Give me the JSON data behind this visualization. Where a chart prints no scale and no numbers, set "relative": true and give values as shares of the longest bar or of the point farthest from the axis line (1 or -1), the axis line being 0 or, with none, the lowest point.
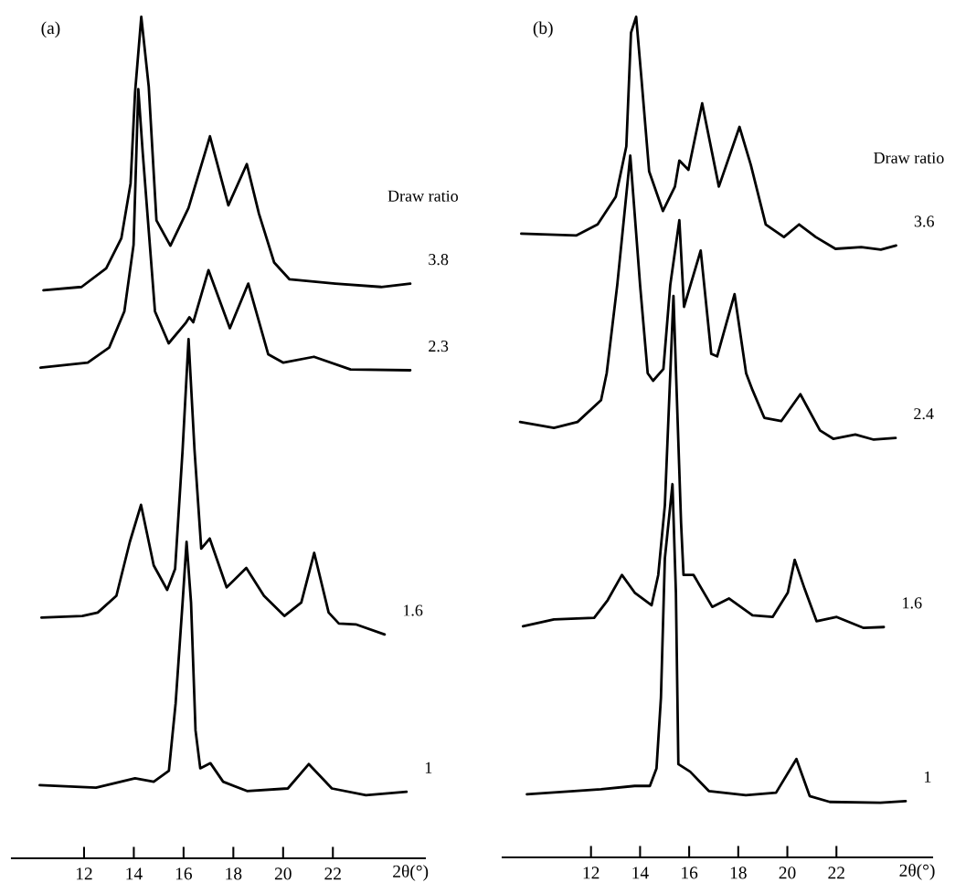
{
  "chart_data": [
    {
      "type": "line",
      "title": "(a)",
      "legend_title": "Draw ratio",
      "xlabel": "2θ(°)",
      "relative": true,
      "xlim": [
        9.1,
        25.7
      ],
      "xticks": [
        12,
        14,
        16,
        18,
        20,
        22
      ],
      "series": [
        {
          "name": "3.8",
          "color": "#000000",
          "x": [
            10.37,
            11.9,
            12.89,
            13.5,
            13.87,
            14.05,
            14.3,
            14.6,
            14.91,
            15.47,
            16.2,
            17.06,
            17.8,
            18.54,
            19.03,
            19.64,
            20.26,
            22.1,
            23.94,
            25.11
          ],
          "values": [
            0.675,
            0.679,
            0.701,
            0.737,
            0.802,
            0.91,
            1.0,
            0.917,
            0.758,
            0.728,
            0.773,
            0.858,
            0.776,
            0.825,
            0.766,
            0.708,
            0.688,
            0.683,
            0.679,
            0.683
          ]
        },
        {
          "name": "2.3",
          "color": "#000000",
          "x": [
            10.25,
            12.15,
            13.01,
            13.62,
            13.99,
            14.18,
            14.36,
            14.85,
            15.4,
            16.08,
            16.23,
            16.39,
            17.0,
            17.86,
            18.6,
            19.4,
            20.01,
            21.24,
            22.71,
            25.11
          ],
          "values": [
            0.583,
            0.589,
            0.607,
            0.65,
            0.729,
            0.914,
            0.838,
            0.65,
            0.612,
            0.636,
            0.643,
            0.637,
            0.699,
            0.63,
            0.683,
            0.599,
            0.589,
            0.596,
            0.581,
            0.58
          ]
        },
        {
          "name": "1.6",
          "color": "#000000",
          "x": [
            10.29,
            11.93,
            12.55,
            13.3,
            13.84,
            14.29,
            14.8,
            15.34,
            15.66,
            15.96,
            16.2,
            16.44,
            16.71,
            17.05,
            17.73,
            18.52,
            19.23,
            20.05,
            20.73,
            21.25,
            21.83,
            22.24,
            22.92,
            24.08
          ],
          "values": [
            0.286,
            0.288,
            0.292,
            0.312,
            0.376,
            0.42,
            0.348,
            0.319,
            0.344,
            0.485,
            0.617,
            0.485,
            0.368,
            0.38,
            0.322,
            0.345,
            0.312,
            0.288,
            0.304,
            0.363,
            0.292,
            0.279,
            0.278,
            0.266
          ]
        },
        {
          "name": "1",
          "color": "#000000",
          "x": [
            10.22,
            12.48,
            14.05,
            14.8,
            15.41,
            15.68,
            15.96,
            16.12,
            16.3,
            16.48,
            16.67,
            17.08,
            17.59,
            18.55,
            20.19,
            21.03,
            21.96,
            23.33,
            24.96
          ],
          "values": [
            0.087,
            0.084,
            0.095,
            0.091,
            0.104,
            0.184,
            0.304,
            0.376,
            0.304,
            0.152,
            0.107,
            0.113,
            0.091,
            0.08,
            0.083,
            0.112,
            0.083,
            0.075,
            0.079
          ]
        }
      ]
    },
    {
      "type": "line",
      "title": "(b)",
      "legend_title": "Draw ratio",
      "xlabel": "2θ(°)",
      "relative": true,
      "xlim": [
        8.4,
        25.9
      ],
      "xticks": [
        12,
        14,
        16,
        18,
        20,
        22
      ],
      "series": [
        {
          "name": "3.6",
          "color": "#000000",
          "x": [
            9.16,
            11.41,
            12.27,
            13.01,
            13.44,
            13.63,
            13.84,
            14.06,
            14.37,
            14.93,
            15.42,
            15.6,
            15.97,
            16.53,
            17.21,
            18.05,
            18.51,
            19.12,
            19.86,
            20.48,
            21.16,
            21.96,
            23.01,
            23.81,
            24.43
          ],
          "values": [
            0.742,
            0.74,
            0.753,
            0.786,
            0.846,
            0.981,
            1.0,
            0.925,
            0.816,
            0.769,
            0.798,
            0.829,
            0.818,
            0.897,
            0.798,
            0.869,
            0.824,
            0.753,
            0.738,
            0.753,
            0.738,
            0.724,
            0.726,
            0.723,
            0.728
          ]
        },
        {
          "name": "2.4",
          "color": "#000000",
          "x": [
            9.11,
            10.49,
            11.45,
            12.41,
            12.64,
            13.07,
            13.6,
            14.0,
            14.31,
            14.53,
            14.95,
            15.23,
            15.6,
            15.79,
            16.47,
            16.9,
            17.14,
            17.52,
            17.85,
            18.32,
            18.58,
            19.06,
            19.75,
            20.53,
            21.33,
            21.87,
            22.77,
            23.52,
            24.41
          ],
          "values": [
            0.518,
            0.511,
            0.518,
            0.544,
            0.576,
            0.681,
            0.835,
            0.681,
            0.576,
            0.567,
            0.581,
            0.681,
            0.758,
            0.655,
            0.722,
            0.599,
            0.596,
            0.636,
            0.67,
            0.576,
            0.556,
            0.523,
            0.519,
            0.551,
            0.508,
            0.498,
            0.503,
            0.497,
            0.499
          ]
        },
        {
          "name": "1.6",
          "color": "#000000",
          "x": [
            9.23,
            10.49,
            12.13,
            12.68,
            13.26,
            13.78,
            14.47,
            14.74,
            15.01,
            15.36,
            15.67,
            15.77,
            16.18,
            16.94,
            17.62,
            18.58,
            19.4,
            20.02,
            20.3,
            20.71,
            21.19,
            22.01,
            23.11,
            23.93
          ],
          "values": [
            0.275,
            0.283,
            0.285,
            0.306,
            0.336,
            0.315,
            0.3,
            0.336,
            0.419,
            0.668,
            0.398,
            0.336,
            0.336,
            0.298,
            0.308,
            0.288,
            0.286,
            0.315,
            0.354,
            0.319,
            0.281,
            0.286,
            0.273,
            0.274
          ]
        },
        {
          "name": "1",
          "color": "#000000",
          "x": [
            9.39,
            12.41,
            13.78,
            14.4,
            14.67,
            14.85,
            15.01,
            15.32,
            15.46,
            15.56,
            16.04,
            16.8,
            18.31,
            19.54,
            20.37,
            20.91,
            21.73,
            23.79,
            24.82
          ],
          "values": [
            0.075,
            0.081,
            0.085,
            0.085,
            0.106,
            0.19,
            0.356,
            0.444,
            0.315,
            0.111,
            0.102,
            0.079,
            0.074,
            0.077,
            0.117,
            0.073,
            0.066,
            0.065,
            0.067
          ]
        }
      ]
    }
  ]
}
